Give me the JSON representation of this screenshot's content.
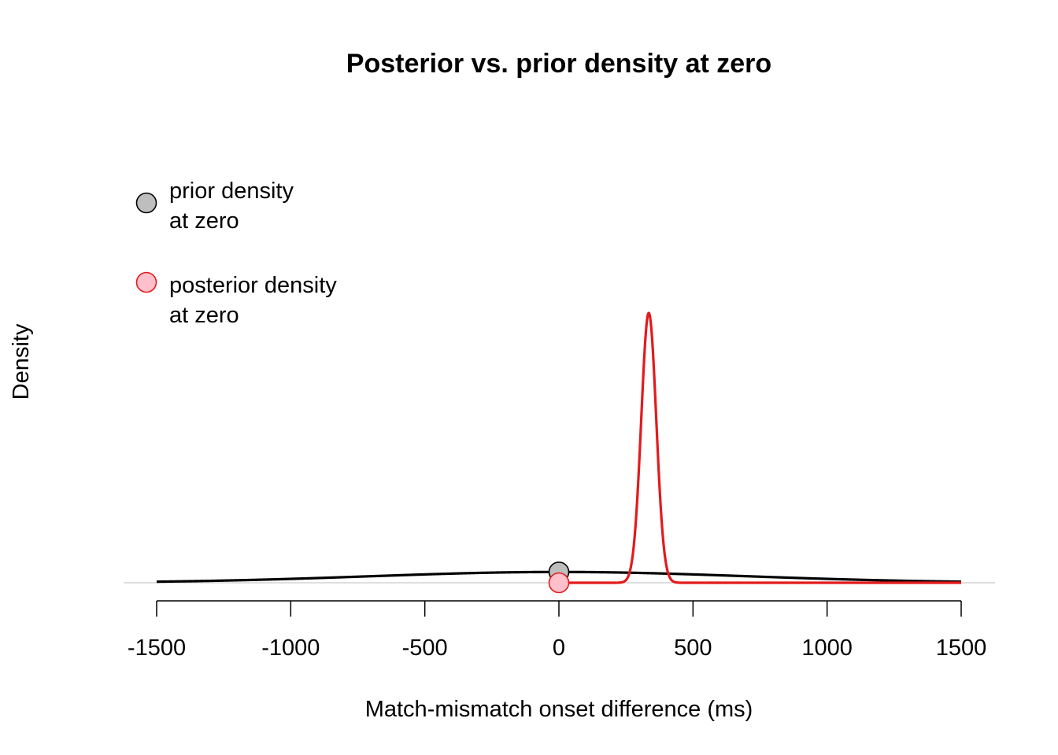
{
  "chart_data": {
    "type": "line",
    "title": "Posterior vs. prior density at zero",
    "xlabel": "Match-mismatch onset difference (ms)",
    "ylabel": "Density",
    "xlim": [
      -1500,
      1500
    ],
    "x_ticks": [
      -1500,
      -1000,
      -500,
      0,
      500,
      1000,
      1500
    ],
    "y_ticks_shown": false,
    "grid": false,
    "legend_position": "top-left",
    "series": [
      {
        "key": "prior",
        "distribution": "normal",
        "mean": 0,
        "sd": 700,
        "x_range": [
          -1500,
          1500
        ],
        "color": "#000000"
      },
      {
        "key": "posterior",
        "distribution": "normal",
        "mean": 335,
        "sd": 28,
        "x_range": [
          0,
          1500
        ],
        "color": "#e31a1c"
      }
    ],
    "points": [
      {
        "key": "prior_at_zero",
        "x": 0,
        "on_series": "prior",
        "fill": "#bebebe",
        "stroke": "#000000"
      },
      {
        "key": "posterior_at_zero",
        "x": 0,
        "on_series": "posterior",
        "fill": "#ffc0cb",
        "stroke": "#e31a1c"
      }
    ],
    "legend": [
      {
        "line1": "prior density",
        "line2": "at zero",
        "fill": "#bebebe",
        "stroke": "#000000"
      },
      {
        "line1": "posterior density",
        "line2": "at zero",
        "fill": "#ffc0cb",
        "stroke": "#e31a1c"
      }
    ]
  }
}
